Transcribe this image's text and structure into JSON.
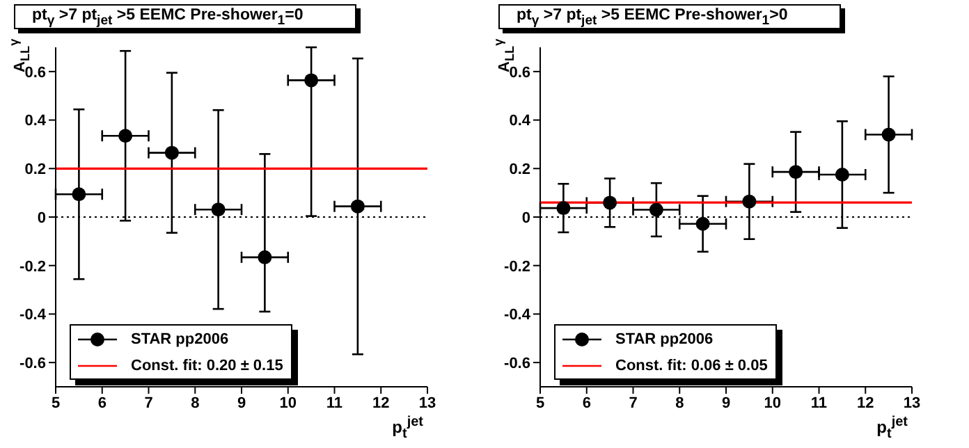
{
  "chart_data": [
    {
      "type": "scatter",
      "title": "pt$_{γ}$ >7  pt$_{jet}$ >5  EEMC Pre-shower$_{1}$=0",
      "xlabel": "p$_{t}$$^{jet}$",
      "ylabel": "A$_{LL}$$^{γ}$",
      "xlim": [
        5,
        13
      ],
      "xticks": [
        5,
        6,
        7,
        8,
        9,
        10,
        11,
        12,
        13
      ],
      "ylim": [
        -0.7,
        0.7
      ],
      "yticks": [
        -0.6,
        -0.4,
        -0.2,
        0,
        0.2,
        0.4,
        0.6
      ],
      "grid": false,
      "legend": "bottom left",
      "marker": "circle",
      "ref_lines": [
        {
          "axis": "y",
          "value": 0,
          "color": "#000000",
          "line_style": "dotted"
        }
      ],
      "series": [
        {
          "name": "STAR pp2006",
          "color": "#000000",
          "x": [
            5.5,
            6.5,
            7.5,
            8.5,
            9.5,
            10.5,
            11.5
          ],
          "values": [
            0.094,
            0.335,
            0.265,
            0.031,
            -0.166,
            0.564,
            0.044
          ],
          "errors": [
            0.35,
            0.35,
            0.33,
            0.41,
            [
              -0.39,
              0.26
            ],
            [
              0.004,
              0.7
            ],
            0.61
          ],
          "xerrors": [
            0.5,
            0.5,
            0.5,
            0.5,
            0.5,
            0.5,
            0.5
          ]
        },
        {
          "name": "Const. fit: 0.20 ± 0.15",
          "type": "line",
          "marker": "none",
          "color": "#ff0000",
          "x": [
            5,
            13
          ],
          "values": [
            0.2,
            0.2
          ]
        }
      ]
    },
    {
      "type": "scatter",
      "title": "pt$_{γ}$ >7  pt$_{jet}$ >5  EEMC Pre-shower$_{1}$>0",
      "xlabel": "p$_{t}$$^{jet}$",
      "ylabel": "A$_{LL}$$^{γ}$",
      "xlim": [
        5,
        13
      ],
      "xticks": [
        5,
        6,
        7,
        8,
        9,
        10,
        11,
        12,
        13
      ],
      "ylim": [
        -0.7,
        0.7
      ],
      "yticks": [
        -0.6,
        -0.4,
        -0.2,
        0,
        0.2,
        0.4,
        0.6
      ],
      "grid": false,
      "legend": "bottom left",
      "marker": "circle",
      "ref_lines": [
        {
          "axis": "y",
          "value": 0,
          "color": "#000000",
          "line_style": "dotted"
        }
      ],
      "series": [
        {
          "name": "STAR pp2006",
          "color": "#000000",
          "x": [
            5.5,
            6.5,
            7.5,
            8.5,
            9.5,
            10.5,
            11.5,
            12.5
          ],
          "values": [
            0.037,
            0.059,
            0.03,
            -0.028,
            0.064,
            0.186,
            0.175,
            0.34
          ],
          "errors": [
            0.1,
            0.1,
            0.11,
            0.115,
            0.155,
            0.165,
            0.22,
            0.24
          ],
          "xerrors": [
            0.5,
            0.5,
            0.5,
            0.5,
            0.5,
            0.5,
            0.5,
            0.5
          ]
        },
        {
          "name": "Const. fit: 0.06 ± 0.05",
          "type": "line",
          "marker": "none",
          "color": "#ff0000",
          "x": [
            5,
            13
          ],
          "values": [
            0.06,
            0.06
          ]
        }
      ]
    }
  ]
}
